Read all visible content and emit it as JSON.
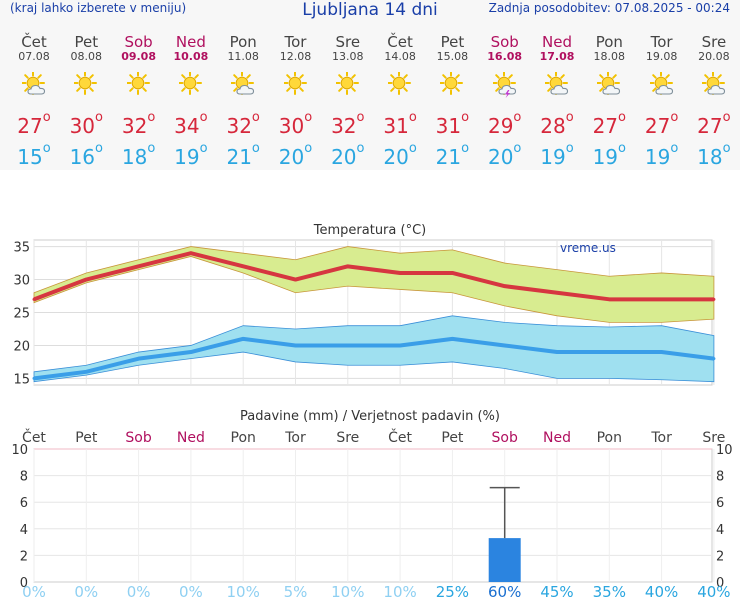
{
  "header": {
    "left": "(kraj lahko izberete v meniju)",
    "title": "Ljubljana 14 dni",
    "right": "Zadnja posodobitev: 07.08.2025 - 00:24"
  },
  "days": [
    {
      "name": "Čet",
      "date": "07.08",
      "weekend": false,
      "icon": "sun-cloud-icon",
      "max": "27",
      "min": "15"
    },
    {
      "name": "Pet",
      "date": "08.08",
      "weekend": false,
      "icon": "sun-icon",
      "max": "30",
      "min": "16"
    },
    {
      "name": "Sob",
      "date": "09.08",
      "weekend": true,
      "icon": "sun-icon",
      "max": "32",
      "min": "18"
    },
    {
      "name": "Ned",
      "date": "10.08",
      "weekend": true,
      "icon": "sun-icon",
      "max": "34",
      "min": "19"
    },
    {
      "name": "Pon",
      "date": "11.08",
      "weekend": false,
      "icon": "sun-cloud-icon",
      "max": "32",
      "min": "21"
    },
    {
      "name": "Tor",
      "date": "12.08",
      "weekend": false,
      "icon": "sun-icon",
      "max": "30",
      "min": "20"
    },
    {
      "name": "Sre",
      "date": "13.08",
      "weekend": false,
      "icon": "sun-icon",
      "max": "32",
      "min": "20"
    },
    {
      "name": "Čet",
      "date": "14.08",
      "weekend": false,
      "icon": "sun-icon",
      "max": "31",
      "min": "20"
    },
    {
      "name": "Pet",
      "date": "15.08",
      "weekend": false,
      "icon": "sun-icon",
      "max": "31",
      "min": "21"
    },
    {
      "name": "Sob",
      "date": "16.08",
      "weekend": true,
      "icon": "thunderstorm-icon",
      "max": "29",
      "min": "20"
    },
    {
      "name": "Ned",
      "date": "17.08",
      "weekend": true,
      "icon": "sun-cloud-icon",
      "max": "28",
      "min": "19"
    },
    {
      "name": "Pon",
      "date": "18.08",
      "weekend": false,
      "icon": "sun-cloud-icon",
      "max": "27",
      "min": "19"
    },
    {
      "name": "Tor",
      "date": "19.08",
      "weekend": false,
      "icon": "sun-cloud-icon",
      "max": "27",
      "min": "19"
    },
    {
      "name": "Sre",
      "date": "20.08",
      "weekend": false,
      "icon": "sun-cloud-icon",
      "max": "27",
      "min": "18"
    }
  ],
  "colors": {
    "max": "#d6273b",
    "min": "#2aa6e0",
    "weekend": "#b0105f",
    "rain_bar": "#2b84e0"
  },
  "chart_data": [
    {
      "type": "line",
      "title": "Temperatura (°C)",
      "watermark": "vreme.us",
      "ylim": [
        14,
        36
      ],
      "yticks": [
        15,
        20,
        25,
        30,
        35
      ],
      "categories": [
        "07.08",
        "08.08",
        "09.08",
        "10.08",
        "11.08",
        "12.08",
        "13.08",
        "14.08",
        "15.08",
        "16.08",
        "17.08",
        "18.08",
        "19.08",
        "20.08"
      ],
      "series": [
        {
          "values": [
            27,
            30,
            32,
            34,
            32,
            30,
            32,
            31,
            31,
            29,
            28,
            27,
            27,
            27
          ],
          "low": [
            26.5,
            29.5,
            31.5,
            33.5,
            31,
            28,
            29,
            28.5,
            28,
            26,
            24.5,
            23.5,
            23.5,
            24
          ],
          "high": [
            28,
            31,
            33,
            35,
            34,
            33,
            35,
            34,
            34.5,
            32.5,
            31.5,
            30.5,
            31,
            30.5
          ]
        },
        {
          "values": [
            15,
            16,
            18,
            19,
            21,
            20,
            20,
            20,
            21,
            20,
            19,
            19,
            19,
            18
          ],
          "low": [
            14.5,
            15.5,
            17,
            18,
            19,
            17.5,
            17,
            17,
            17.5,
            16.5,
            15,
            15,
            14.8,
            14.5
          ],
          "high": [
            16,
            17,
            19,
            20,
            23,
            22.5,
            23,
            23,
            24.5,
            23.5,
            23,
            22.8,
            23,
            21.5
          ]
        }
      ]
    },
    {
      "type": "bar",
      "title": "Padavine (mm) / Verjetnost padavin (%)",
      "day_labels": [
        "Čet",
        "Pet",
        "Sob",
        "Ned",
        "Pon",
        "Tor",
        "Sre",
        "Čet",
        "Pet",
        "Sob",
        "Ned",
        "Pon",
        "Tor",
        "Sre"
      ],
      "ylim": [
        0,
        10
      ],
      "yticks": [
        0,
        2,
        4,
        6,
        8,
        10
      ],
      "values": [
        0,
        0,
        0,
        0,
        0,
        0,
        0,
        0,
        0,
        3.3,
        0,
        0,
        0,
        0
      ],
      "error_high": [
        0,
        0,
        0,
        0,
        0,
        0,
        0,
        0,
        0,
        7.1,
        0,
        0,
        0,
        0
      ],
      "probability": [
        "0%",
        "0%",
        "0%",
        "0%",
        "10%",
        "5%",
        "10%",
        "10%",
        "25%",
        "60%",
        "45%",
        "35%",
        "40%",
        "40%"
      ]
    }
  ]
}
